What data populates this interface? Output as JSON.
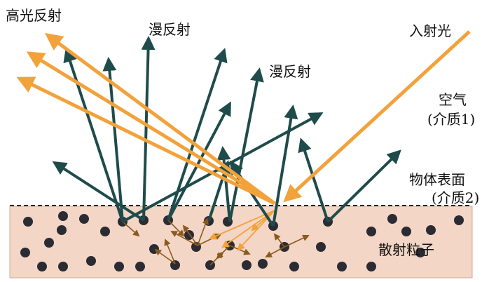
{
  "labels": {
    "specular": "高光反射",
    "diffuse_a": "漫反射",
    "diffuse_b": "漫反射",
    "incident": "入射光",
    "air_line1": "空气",
    "air_line2": "(介质1)",
    "surface_line1": "物体表面",
    "surface_line2": "(介质2)",
    "particles": "散射粒子"
  },
  "colors": {
    "incident_ray": "#f2a23a",
    "specular_ray": "#f2a23a",
    "diffuse_ray": "#1f4b4b",
    "internal_arrow": "#8a5a1e",
    "medium_fill": "#f3d6c6",
    "medium_border": "#cfa897",
    "particle": "#2b2b33",
    "text": "#111111"
  }
}
